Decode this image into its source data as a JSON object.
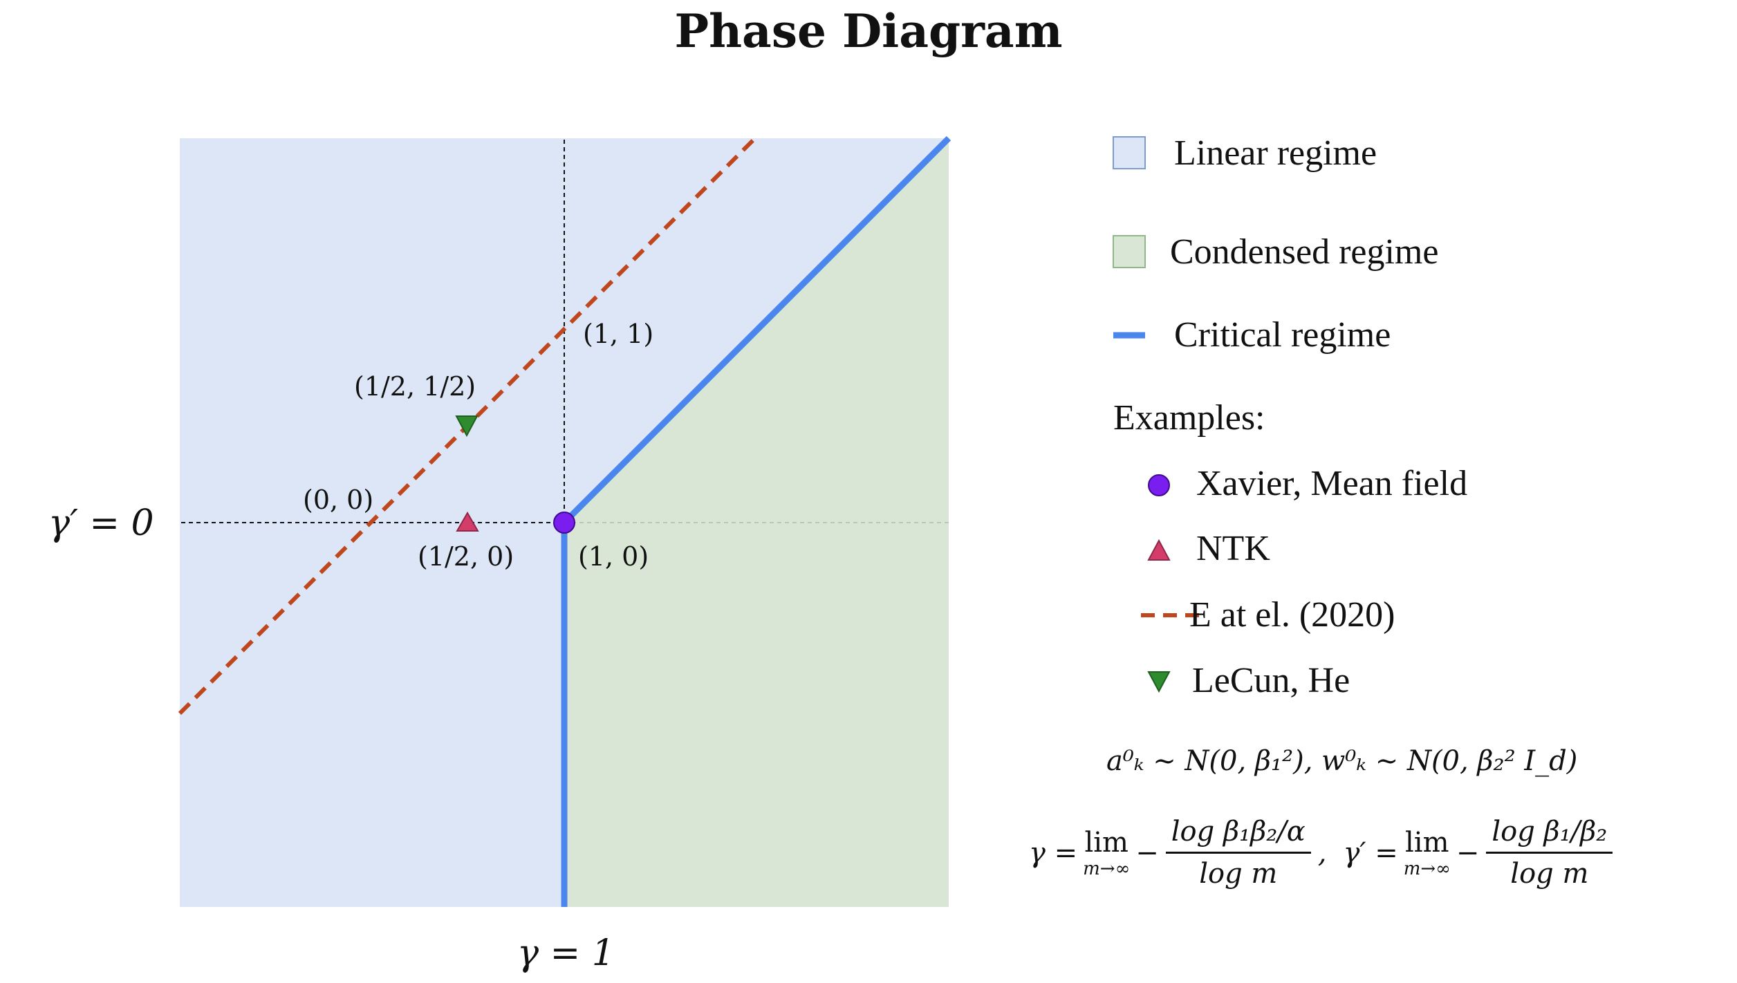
{
  "title": "Phase Diagram",
  "axes": {
    "x_label": "γ = 1",
    "y_label": "γ′ = 0"
  },
  "point_labels": {
    "p11": "(1, 1)",
    "p_half_half": "(1/2, 1/2)",
    "p00": "(0, 0)",
    "p_half_0": "(1/2, 0)",
    "p10": "(1, 0)"
  },
  "legend": {
    "linear": "Linear regime",
    "condensed": "Condensed regime",
    "critical": "Critical regime",
    "examples_heading": "Examples:",
    "xavier": "Xavier, Mean field",
    "ntk": "NTK",
    "e_et_al": "E at el. (2020)",
    "lecun": "LeCun, He"
  },
  "formulas": {
    "init": "a⁰ₖ ∼ N(0, β₁²),   w⁰ₖ ∼ N(0, β₂² I_d)",
    "gamma_lhs": "γ =",
    "gamma_lim": "lim",
    "gamma_lim_sub": "m→∞",
    "gamma_minus": "−",
    "gamma_num": "log β₁β₂/α",
    "gamma_den": "log m",
    "gamma_comma": ",",
    "gammap_lhs": "γ′ =",
    "gammap_lim": "lim",
    "gammap_lim_sub": "m→∞",
    "gammap_minus": "−",
    "gammap_num": "log β₁/β₂",
    "gammap_den": "log m"
  },
  "colors": {
    "linear_fill": "#dde6f6",
    "condensed_fill": "#d9e6d6",
    "critical_line": "#4a86ec",
    "e_line": "#c0461e",
    "xavier_marker": "#7a1ef0",
    "ntk_marker": "#d43d6a",
    "lecun_marker": "#2e8b2e"
  }
}
